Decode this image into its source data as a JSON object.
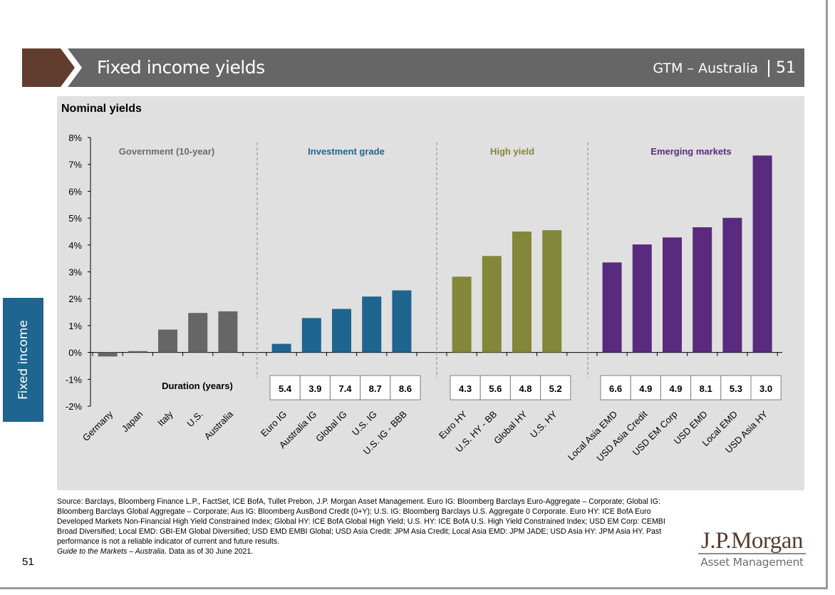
{
  "header": {
    "title": "Fixed income yields",
    "subtitle": "GTM – Australia",
    "page_number": "51"
  },
  "side_tab": {
    "label": "Fixed income"
  },
  "panel_title": "Nominal yields",
  "footer": {
    "source_text": "Source: Barclays, Bloomberg Finance L.P., FactSet, ICE BofA, Tullet Prebon, J.P. Morgan Asset Management. Euro IG: Bloomberg Barclays Euro-Aggregate – Corporate; Global IG: Bloomberg Barclays Global Aggregate – Corporate; Aus IG: Bloomberg AusBond Credit (0+Y); U.S. IG: Bloomberg Barclays U.S. Aggregate 0 Corporate. Euro HY: ICE BofA Euro Developed Markets Non-Financial High Yield Constrained Index; Global HY: ICE BofA Global High Yield; U.S. HY: ICE BofA U.S. High Yield Constrained Index; USD EM Corp: CEMBI Broad Diversified; Local EMD: GBI-EM Global Diversified; USD EMD EMBI Global; USD Asia Credit: JPM Asia Credit; Local Asia EMD: JPM JADE; USD Asia HY: JPM Asia HY. Past performance is not a reliable indicator of current and future results.",
    "guide_title": "Guide to the Markets – Australia",
    "data_as_of": ". Data as of 30 June 2021.",
    "page_number": "51"
  },
  "logo": {
    "name": "J.P.Morgan",
    "subline": "Asset Management"
  },
  "colors": {
    "government": "#666666",
    "investment_grade": "#1e6590",
    "high_yield": "#838739",
    "emerging_markets": "#582b7e",
    "header_brown": "#613d2e",
    "header_gray": "#666666",
    "panel_bg": "#e0e0e0"
  },
  "chart_data": {
    "type": "bar",
    "title": "Nominal yields",
    "xlabel": "",
    "ylabel": "",
    "ylim": [
      -2,
      8
    ],
    "yticks": [
      "-2%",
      "-1%",
      "0%",
      "1%",
      "2%",
      "3%",
      "4%",
      "5%",
      "6%",
      "7%",
      "8%"
    ],
    "grid": false,
    "duration_label": "Duration (years)",
    "groups": [
      {
        "name": "Government (10-year)",
        "color": "#666666",
        "label_color": "#6b6b6b",
        "categories": [
          "Germany",
          "Japan",
          "Italy",
          "U.S.",
          "Australia"
        ],
        "values": [
          -0.15,
          0.05,
          0.85,
          1.47,
          1.53
        ],
        "durations": null
      },
      {
        "name": "Investment grade",
        "color": "#1e6590",
        "label_color": "#1e6590",
        "categories": [
          "Euro IG",
          "Australia IG",
          "Global IG",
          "U.S. IG",
          "U.S. IG - BBB"
        ],
        "values": [
          0.32,
          1.28,
          1.62,
          2.08,
          2.31
        ],
        "durations": [
          "5.4",
          "3.9",
          "7.4",
          "8.7",
          "8.6"
        ]
      },
      {
        "name": "High yield",
        "color": "#838739",
        "label_color": "#838739",
        "categories": [
          "Euro HY",
          "U.S. HY - BB",
          "Global HY",
          "U.S. HY"
        ],
        "values": [
          2.82,
          3.59,
          4.5,
          4.55
        ],
        "durations": [
          "4.3",
          "5.6",
          "4.8",
          "5.2"
        ]
      },
      {
        "name": "Emerging markets",
        "color": "#582b7e",
        "label_color": "#582b7e",
        "categories": [
          "Local Asia EMD",
          "USD Asia Credit",
          "USD EM Corp",
          "USD EMD",
          "Local EMD",
          "USD Asia HY"
        ],
        "values": [
          3.35,
          4.02,
          4.28,
          4.66,
          5.01,
          7.33
        ],
        "durations": [
          "6.6",
          "4.9",
          "4.9",
          "8.1",
          "5.3",
          "3.0"
        ]
      }
    ]
  }
}
